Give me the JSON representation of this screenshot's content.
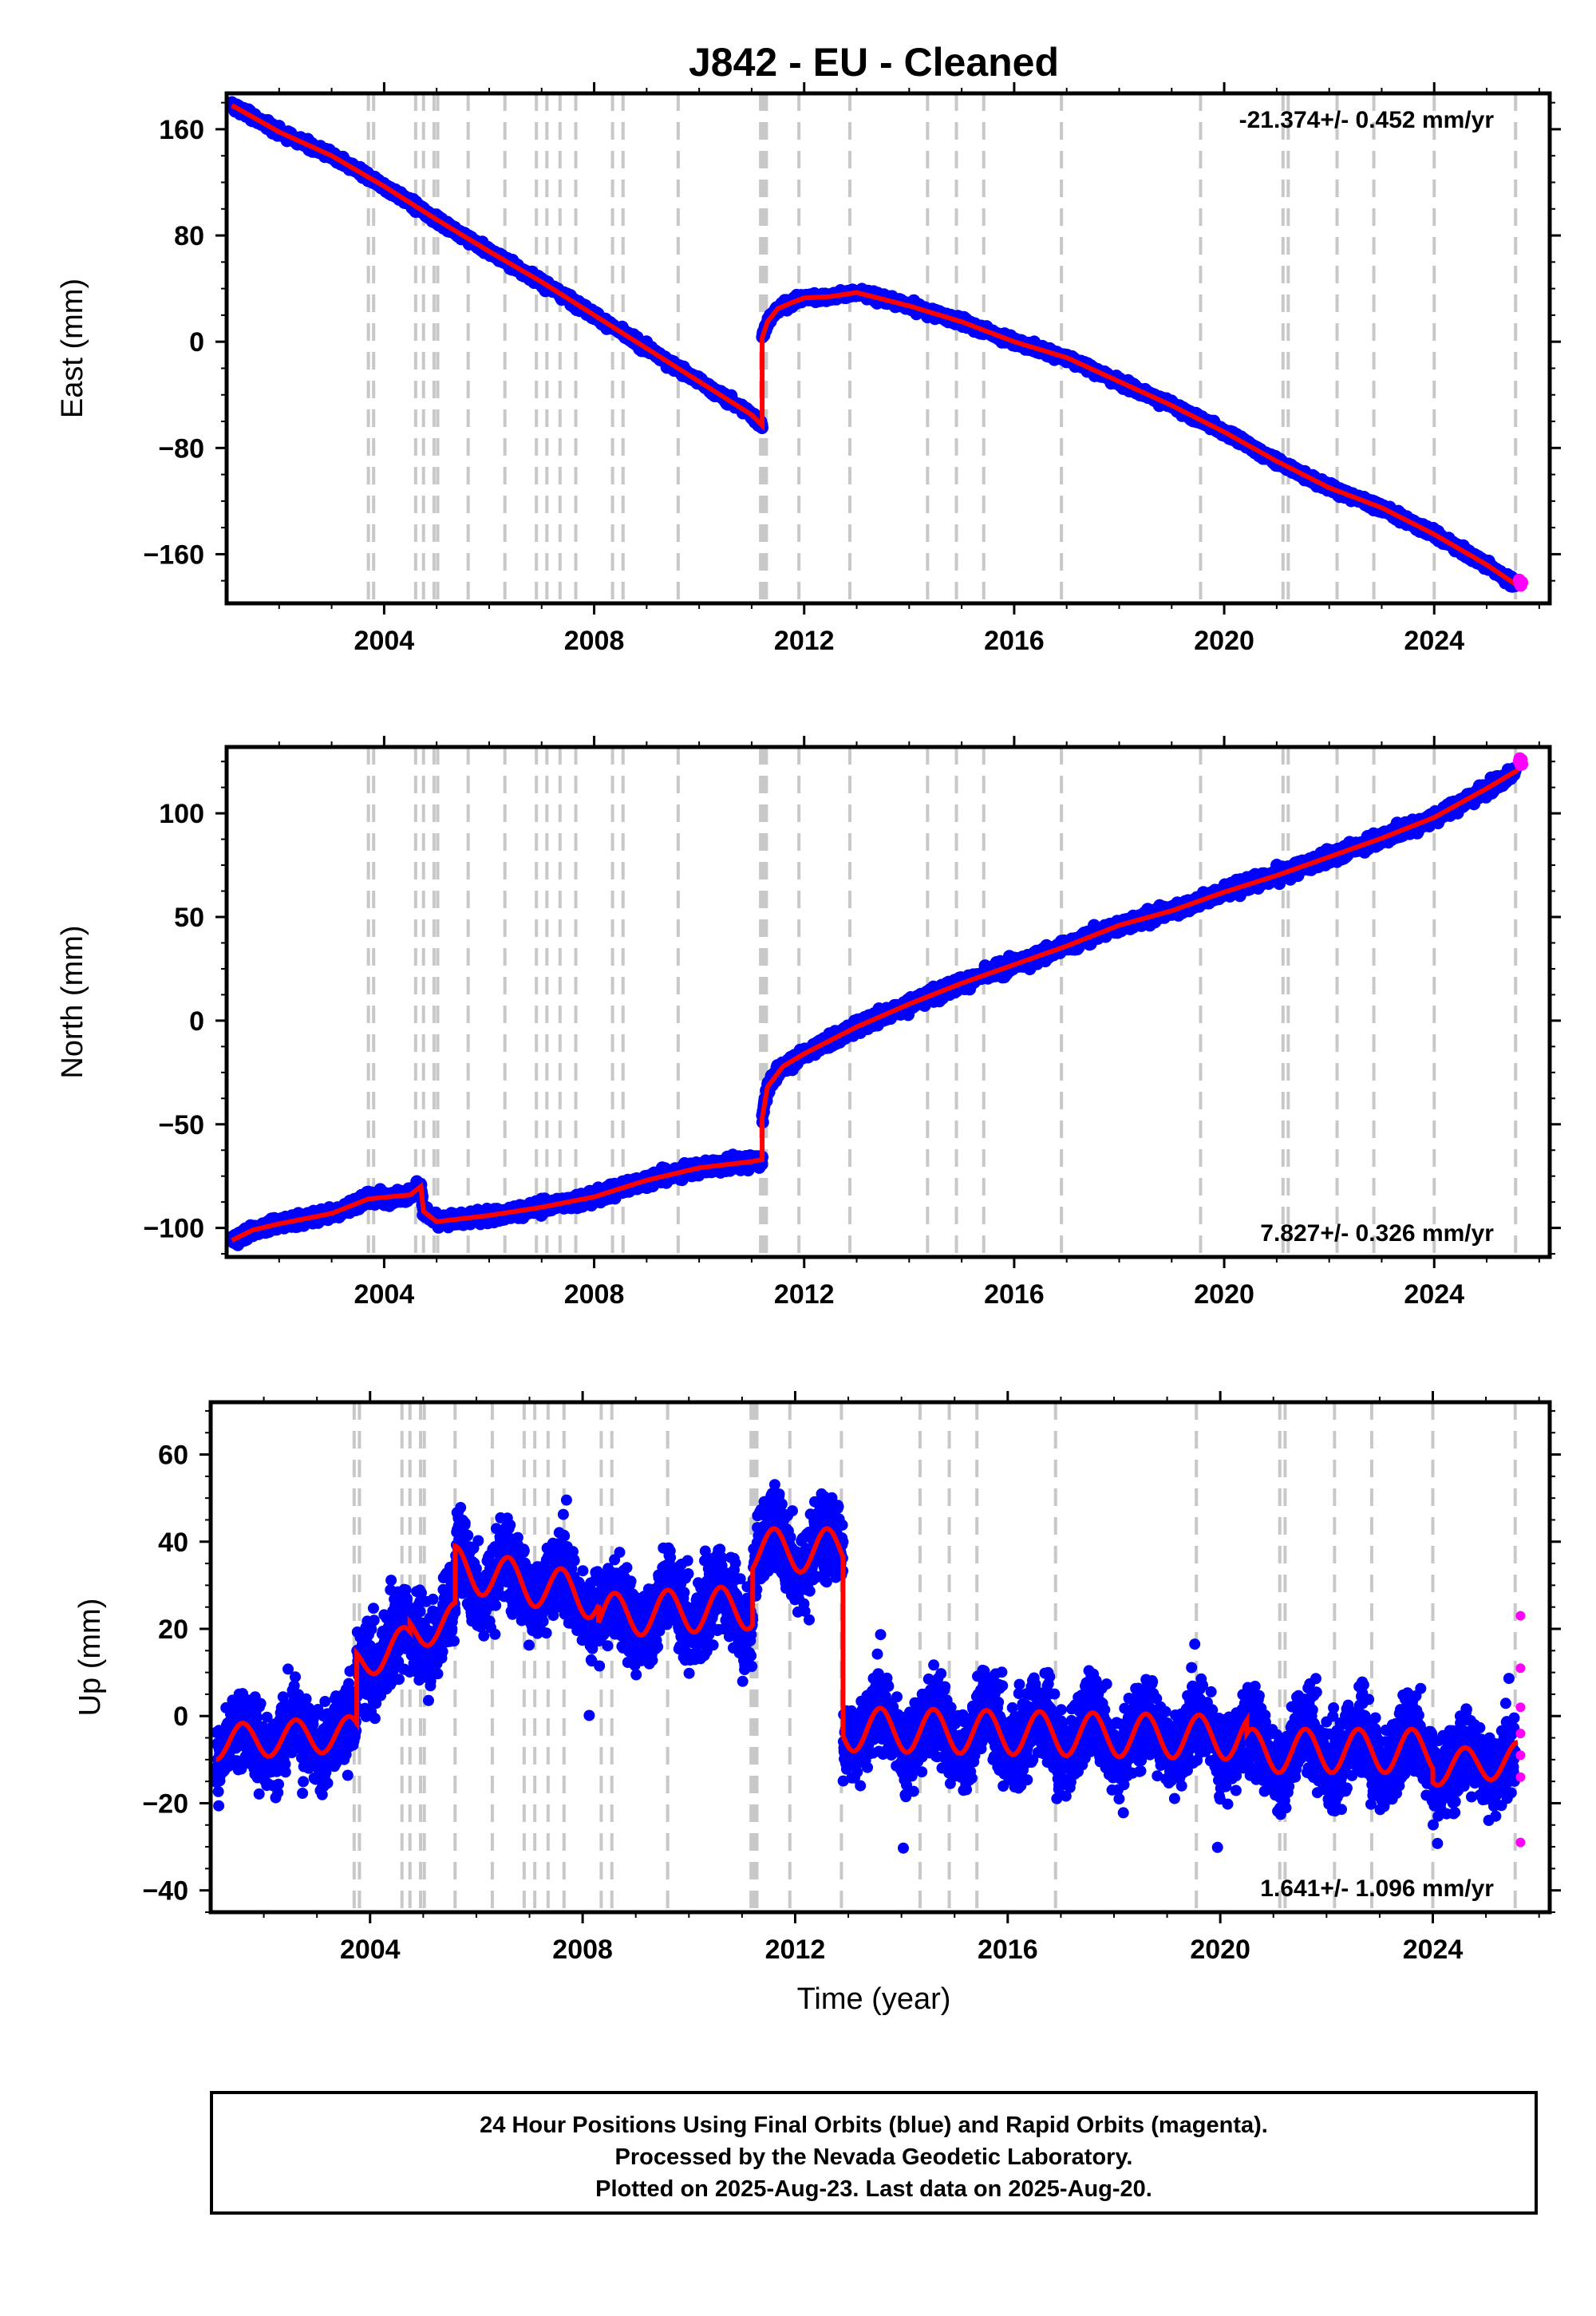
{
  "title": "J842  - EU - Cleaned",
  "footer": {
    "line1": "24 Hour Positions Using Final Orbits (blue) and Rapid Orbits (magenta).",
    "line2": "Processed by the Nevada Geodetic Laboratory.",
    "line3": "Plotted on 2025-Aug-23. Last data on 2025-Aug-20."
  },
  "colors": {
    "final_orbits": "#0000ff",
    "rapid_orbits": "#ff00ff",
    "model": "#ff0000",
    "event_lines": "#c8c8c8"
  },
  "xlabel": "Time (year)",
  "event_lines": [
    2003.7,
    2003.8,
    2004.6,
    2004.75,
    2004.95,
    2005.02,
    2005.6,
    2006.3,
    2006.9,
    2007.1,
    2007.35,
    2007.65,
    2008.35,
    2008.55,
    2009.6,
    2011.17,
    2011.2,
    2011.24,
    2011.28,
    2011.9,
    2012.87,
    2014.35,
    2014.9,
    2015.42,
    2016.9,
    2019.55,
    2021.12,
    2021.22,
    2022.15,
    2022.85,
    2024.0,
    2025.55
  ],
  "chart_data": [
    {
      "type": "scatter",
      "ylabel": "East (mm)",
      "rate_label": "-21.374+/- 0.452 mm/yr",
      "rate_position": "top-right",
      "xlim": [
        2001.0,
        2026.2
      ],
      "ylim": [
        -197,
        187
      ],
      "xticks": [
        "2004",
        "2008",
        "2012",
        "2016",
        "2020",
        "2024"
      ],
      "yticks": [
        "160",
        "80",
        "0",
        "−80",
        "−160"
      ],
      "ytick_values": [
        160,
        80,
        0,
        -80,
        -160
      ],
      "model_series": {
        "name": "model",
        "x": [
          2001.1,
          2002.0,
          2003.0,
          2004.0,
          2005.0,
          2006.0,
          2007.0,
          2008.0,
          2009.0,
          2010.0,
          2011.0,
          2011.2,
          2011.2,
          2011.3,
          2011.5,
          2011.8,
          2012.0,
          2012.5,
          2013.0,
          2014.0,
          2015.0,
          2016.0,
          2017.0,
          2018.0,
          2019.0,
          2020.0,
          2021.0,
          2022.0,
          2023.0,
          2024.0,
          2025.0,
          2025.6
        ],
        "y": [
          178,
          158,
          140,
          117,
          92,
          68,
          45,
          20,
          -5,
          -30,
          -55,
          -63,
          3,
          15,
          25,
          30,
          33,
          34,
          37,
          27,
          15,
          0,
          -12,
          -30,
          -48,
          -68,
          -90,
          -110,
          -125,
          -145,
          -168,
          -184
        ]
      },
      "final_orbits_points": "dense daily scatter (blue) around the model",
      "rapid_orbits_last_y": -182
    },
    {
      "type": "scatter",
      "ylabel": "North (mm)",
      "rate_label": "7.827+/- 0.326 mm/yr",
      "rate_position": "bottom-right",
      "xlim": [
        2001.0,
        2026.2
      ],
      "ylim": [
        -114,
        132
      ],
      "xticks": [
        "2004",
        "2008",
        "2012",
        "2016",
        "2020",
        "2024"
      ],
      "yticks": [
        "100",
        "50",
        "0",
        "−50",
        "−100"
      ],
      "ytick_values": [
        100,
        50,
        0,
        -50,
        -100
      ],
      "model_series": {
        "name": "model",
        "x": [
          2001.1,
          2001.5,
          2002.0,
          2003.0,
          2003.7,
          2004.5,
          2004.7,
          2004.75,
          2005.0,
          2006.0,
          2007.0,
          2008.0,
          2009.0,
          2010.0,
          2011.0,
          2011.2,
          2011.2,
          2011.3,
          2011.6,
          2012.0,
          2013.0,
          2014.0,
          2015.0,
          2016.0,
          2017.0,
          2018.0,
          2019.0,
          2020.0,
          2021.0,
          2022.0,
          2023.0,
          2024.0,
          2025.0,
          2025.6
        ],
        "y": [
          -106,
          -101,
          -98,
          -93,
          -86,
          -84,
          -80,
          -92,
          -97,
          -94,
          -90,
          -85,
          -77,
          -71,
          -68,
          -67,
          -47,
          -32,
          -22,
          -16,
          -3,
          8,
          18,
          27,
          36,
          46,
          53,
          62,
          70,
          79,
          88,
          98,
          112,
          121
        ]
      },
      "final_orbits_points": "dense daily scatter (blue) around the model",
      "rapid_orbits_last_y": 125
    },
    {
      "type": "scatter",
      "ylabel": "Up (mm)",
      "rate_label": "1.641+/- 1.096 mm/yr",
      "rate_position": "bottom-right",
      "xlim": [
        2001.0,
        2026.2
      ],
      "ylim": [
        -45,
        72
      ],
      "xticks": [
        "2004",
        "2008",
        "2012",
        "2016",
        "2020",
        "2024"
      ],
      "yticks": [
        "60",
        "40",
        "20",
        "0",
        "−20",
        "−40"
      ],
      "ytick_values": [
        60,
        40,
        20,
        0,
        -20,
        -40
      ],
      "model_segments": [
        {
          "x0": 2001.1,
          "x1": 2003.75,
          "base0": -6,
          "base1": -4,
          "amp": 4
        },
        {
          "x0": 2003.75,
          "x1": 2004.75,
          "base0": 12,
          "base1": 17,
          "amp": 4
        },
        {
          "x0": 2004.75,
          "x1": 2005.6,
          "base0": 19,
          "base1": 22,
          "amp": 4
        },
        {
          "x0": 2005.6,
          "x1": 2008.3,
          "base0": 34,
          "base1": 27,
          "amp": 5
        },
        {
          "x0": 2008.3,
          "x1": 2011.2,
          "base0": 23,
          "base1": 25,
          "amp": 5
        },
        {
          "x0": 2011.2,
          "x1": 2012.9,
          "base0": 38,
          "base1": 38,
          "amp": 5
        },
        {
          "x0": 2012.9,
          "x1": 2020.5,
          "base0": -3,
          "base1": -5,
          "amp": 5
        },
        {
          "x0": 2020.5,
          "x1": 2024.0,
          "base0": -8,
          "base1": -8,
          "amp": 5
        },
        {
          "x0": 2024.0,
          "x1": 2025.6,
          "base0": -12,
          "base1": -10,
          "amp": 4
        }
      ],
      "final_orbits_points": "dense daily scatter (blue) around the model",
      "rapid_orbits_y": [
        23,
        11,
        2,
        -4,
        -9,
        -14,
        -29
      ]
    }
  ]
}
